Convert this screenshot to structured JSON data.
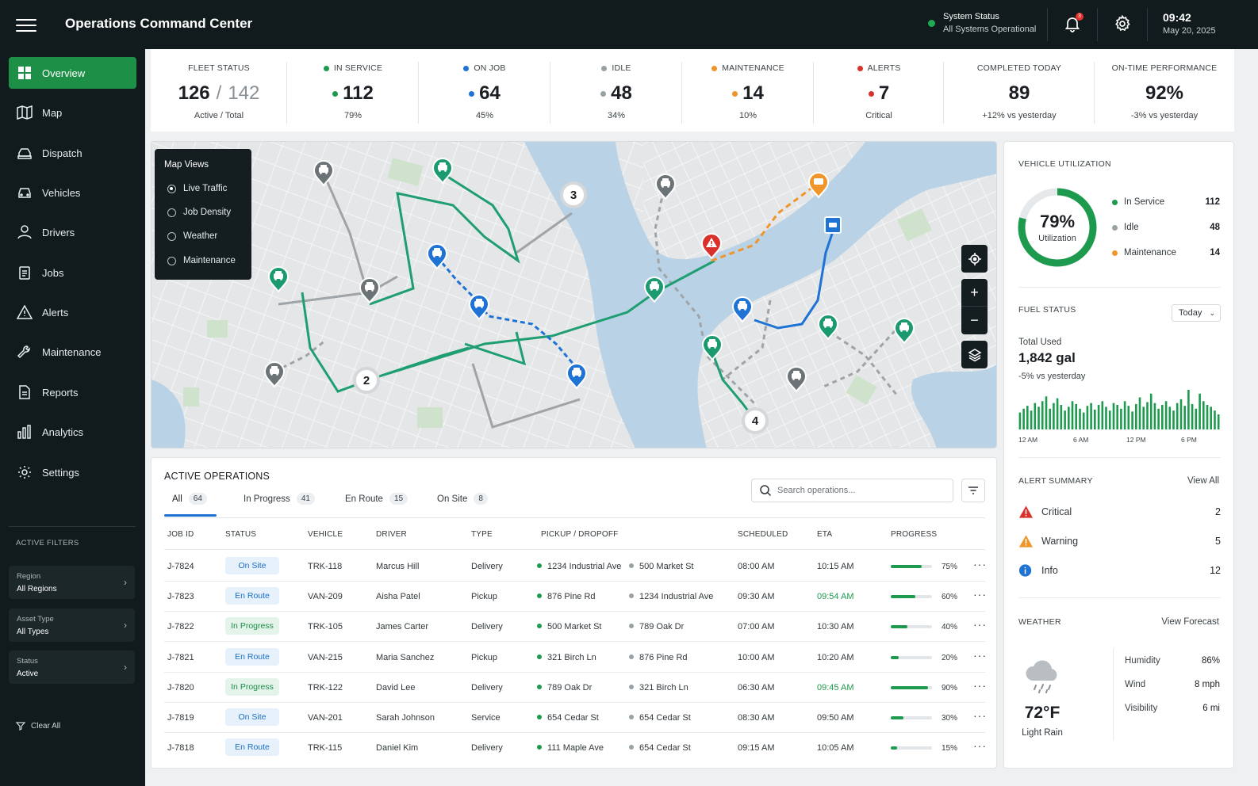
{
  "header": {
    "title": "Operations Command Center",
    "system_status_label": "System Status",
    "system_status_value": "All Systems Operational",
    "notification_count": "3",
    "time": "09:42",
    "date": "May 20, 2025"
  },
  "sidebar": {
    "items": [
      {
        "label": "Overview",
        "icon": "grid-icon"
      },
      {
        "label": "Map",
        "icon": "map-icon"
      },
      {
        "label": "Dispatch",
        "icon": "dispatch-icon"
      },
      {
        "label": "Vehicles",
        "icon": "car-icon"
      },
      {
        "label": "Drivers",
        "icon": "person-icon"
      },
      {
        "label": "Jobs",
        "icon": "clipboard-icon"
      },
      {
        "label": "Alerts",
        "icon": "warning-icon"
      },
      {
        "label": "Maintenance",
        "icon": "wrench-icon"
      },
      {
        "label": "Reports",
        "icon": "document-icon"
      },
      {
        "label": "Analytics",
        "icon": "bar-chart-icon"
      },
      {
        "label": "Settings",
        "icon": "gear-icon"
      }
    ],
    "active_filters_title": "ACTIVE FILTERS",
    "filters": [
      {
        "label": "Region",
        "value": "All Regions"
      },
      {
        "label": "Asset Type",
        "value": "All Types"
      },
      {
        "label": "Status",
        "value": "Active"
      }
    ],
    "clear_all": "Clear All"
  },
  "kpis": {
    "fleet_status": {
      "label": "FLEET STATUS",
      "active": "126",
      "slash": "/",
      "total": "142",
      "sub": "Active / Total"
    },
    "in_service": {
      "label": "IN SERVICE",
      "value": "112",
      "sub": "79%",
      "color": "#1d9a4d"
    },
    "on_job": {
      "label": "ON JOB",
      "value": "64",
      "sub": "45%",
      "color": "#1e73d4"
    },
    "idle": {
      "label": "IDLE",
      "value": "48",
      "sub": "34%",
      "color": "#9aa1a5"
    },
    "maintenance": {
      "label": "MAINTENANCE",
      "value": "14",
      "sub": "10%",
      "color": "#f0952a"
    },
    "alerts": {
      "label": "ALERTS",
      "value": "7",
      "sub": "Critical",
      "color": "#d9312c"
    },
    "completed": {
      "label": "COMPLETED TODAY",
      "value": "89",
      "sub": "+12% vs yesterday"
    },
    "on_time": {
      "label": "ON-TIME PERFORMANCE",
      "value": "92%",
      "sub": "-3% vs yesterday"
    }
  },
  "map": {
    "views_title": "Map Views",
    "views": [
      "Live Traffic",
      "Job Density",
      "Weather",
      "Maintenance"
    ],
    "selected_view": "Live Traffic",
    "clusters": [
      "3",
      "2",
      "4"
    ],
    "controls": [
      "locate-icon",
      "zoom-in-icon",
      "zoom-out-icon",
      "layers-icon"
    ]
  },
  "operations": {
    "title": "ACTIVE OPERATIONS",
    "tabs": [
      {
        "label": "All",
        "count": "64"
      },
      {
        "label": "In Progress",
        "count": "41"
      },
      {
        "label": "En Route",
        "count": "15"
      },
      {
        "label": "On Site",
        "count": "8"
      }
    ],
    "search_placeholder": "Search operations...",
    "columns": [
      "JOB ID",
      "STATUS",
      "VEHICLE",
      "DRIVER",
      "TYPE",
      "PICKUP / DROPOFF",
      "SCHEDULED",
      "ETA",
      "PROGRESS"
    ],
    "rows": [
      {
        "id": "J-7824",
        "status": "On Site",
        "vehicle": "TRK-118",
        "driver": "Marcus Hill",
        "type": "Delivery",
        "pickup": "1234 Industrial Ave",
        "dropoff": "500 Market St",
        "scheduled": "08:00 AM",
        "eta": "10:15 AM",
        "eta_early": false,
        "progress": "75%",
        "progress_value": 0.75
      },
      {
        "id": "J-7823",
        "status": "En Route",
        "vehicle": "VAN-209",
        "driver": "Aisha Patel",
        "type": "Pickup",
        "pickup": "876 Pine Rd",
        "dropoff": "1234 Industrial Ave",
        "scheduled": "09:30 AM",
        "eta": "09:54 AM",
        "eta_early": true,
        "progress": "60%",
        "progress_value": 0.6
      },
      {
        "id": "J-7822",
        "status": "In Progress",
        "vehicle": "TRK-105",
        "driver": "James Carter",
        "type": "Delivery",
        "pickup": "500 Market St",
        "dropoff": "789 Oak Dr",
        "scheduled": "07:00 AM",
        "eta": "10:30 AM",
        "eta_early": false,
        "progress": "40%",
        "progress_value": 0.4
      },
      {
        "id": "J-7821",
        "status": "En Route",
        "vehicle": "VAN-215",
        "driver": "Maria Sanchez",
        "type": "Pickup",
        "pickup": "321 Birch Ln",
        "dropoff": "876 Pine Rd",
        "scheduled": "10:00 AM",
        "eta": "10:20 AM",
        "eta_early": false,
        "progress": "20%",
        "progress_value": 0.2
      },
      {
        "id": "J-7820",
        "status": "In Progress",
        "vehicle": "TRK-122",
        "driver": "David Lee",
        "type": "Delivery",
        "pickup": "789 Oak Dr",
        "dropoff": "321 Birch Ln",
        "scheduled": "06:30 AM",
        "eta": "09:45 AM",
        "eta_early": true,
        "progress": "90%",
        "progress_value": 0.9
      },
      {
        "id": "J-7819",
        "status": "On Site",
        "vehicle": "VAN-201",
        "driver": "Sarah Johnson",
        "type": "Service",
        "pickup": "654 Cedar St",
        "dropoff": "654 Cedar St",
        "scheduled": "08:30 AM",
        "eta": "09:50 AM",
        "eta_early": false,
        "progress": "30%",
        "progress_value": 0.3
      },
      {
        "id": "J-7818",
        "status": "En Route",
        "vehicle": "TRK-115",
        "driver": "Daniel Kim",
        "type": "Delivery",
        "pickup": "111 Maple Ave",
        "dropoff": "654 Cedar St",
        "scheduled": "09:15 AM",
        "eta": "10:05 AM",
        "eta_early": false,
        "progress": "15%",
        "progress_value": 0.15
      }
    ]
  },
  "utilization": {
    "title": "VEHICLE UTILIZATION",
    "percent": "79%",
    "percent_value": 0.79,
    "label": "Utilization",
    "legend": [
      {
        "label": "In Service",
        "value": "112",
        "color": "#1d9a4d"
      },
      {
        "label": "Idle",
        "value": "48",
        "color": "#9aa1a5"
      },
      {
        "label": "Maintenance",
        "value": "14",
        "color": "#f0952a"
      }
    ]
  },
  "fuel": {
    "title": "FUEL STATUS",
    "range": "Today",
    "total_label": "Total Used",
    "total": "1,842 gal",
    "change": "-5% vs yesterday",
    "x_ticks": [
      "12 AM",
      "6 AM",
      "12 PM",
      "6 PM"
    ],
    "bars": [
      18,
      22,
      25,
      20,
      28,
      24,
      30,
      35,
      22,
      28,
      33,
      26,
      20,
      24,
      30,
      27,
      22,
      18,
      25,
      28,
      21,
      26,
      30,
      24,
      20,
      28,
      26,
      22,
      30,
      25,
      19,
      27,
      34,
      24,
      29,
      38,
      28,
      22,
      26,
      30,
      24,
      20,
      28,
      32,
      25,
      42,
      27,
      22,
      38,
      30,
      26,
      24,
      20,
      16
    ]
  },
  "alert_summary": {
    "title": "ALERT SUMMARY",
    "view_all": "View All",
    "items": [
      {
        "label": "Critical",
        "value": "2",
        "icon": "critical-icon"
      },
      {
        "label": "Warning",
        "value": "5",
        "icon": "warning-icon"
      },
      {
        "label": "Info",
        "value": "12",
        "icon": "info-icon"
      }
    ]
  },
  "weather": {
    "title": "WEATHER",
    "view_forecast": "View Forecast",
    "temp": "72°F",
    "condition": "Light Rain",
    "details": [
      {
        "label": "Humidity",
        "value": "86%"
      },
      {
        "label": "Wind",
        "value": "8 mph"
      },
      {
        "label": "Visibility",
        "value": "6 mi"
      }
    ]
  }
}
